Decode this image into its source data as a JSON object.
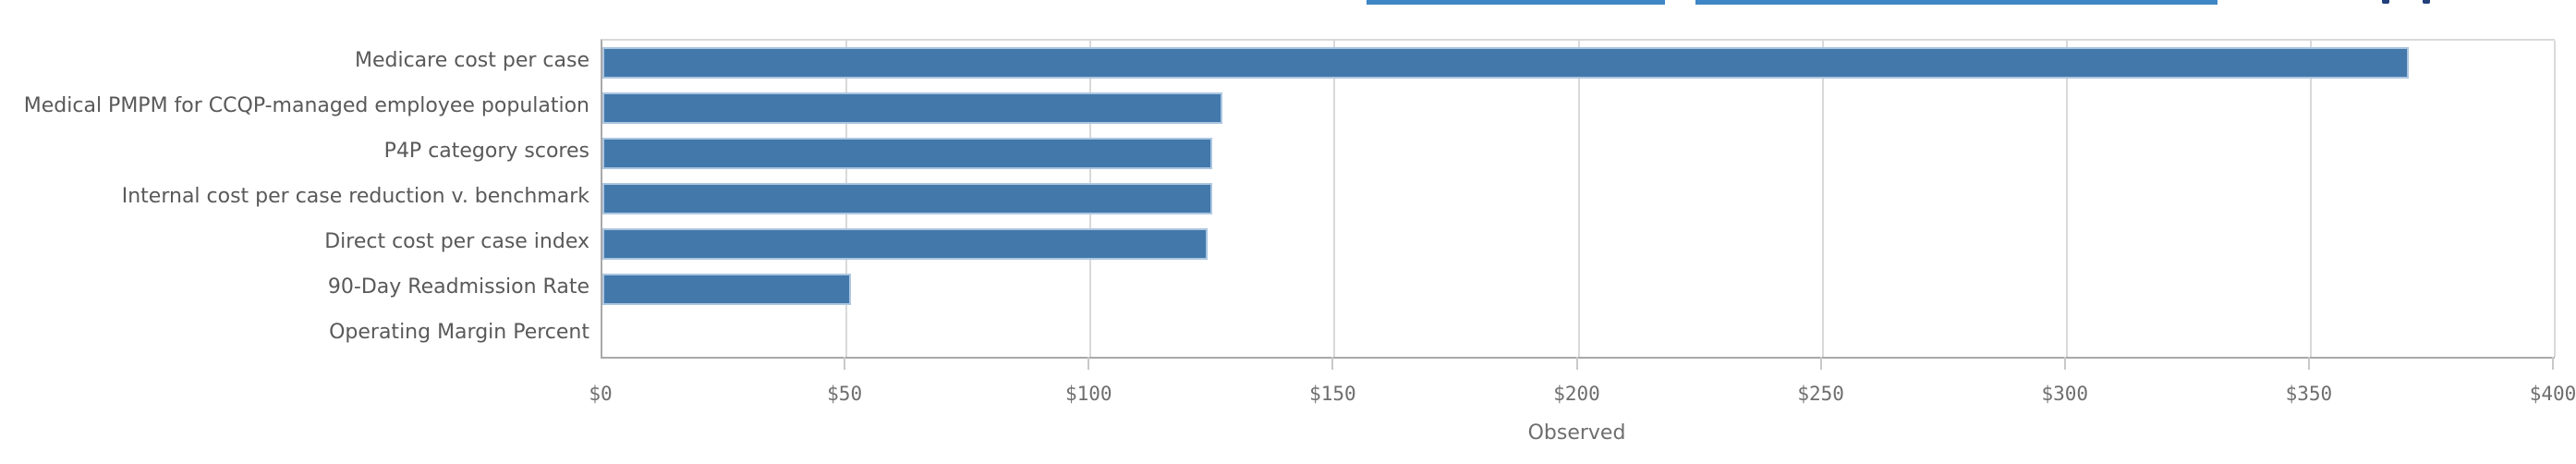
{
  "top_bar": {
    "clipped_button_underline_color": "#3e86c6",
    "clipped_glyph_fragment_color": "#24407c"
  },
  "chart_data": {
    "type": "bar",
    "orientation": "horizontal",
    "title": "",
    "xlabel": "Observed",
    "ylabel": "",
    "categories": [
      "Medicare cost per case",
      "Medical PMPM for CCQP-managed employee population",
      "P4P category scores",
      "Internal cost per case reduction v. benchmark",
      "Direct cost per case index",
      "90-Day Readmission Rate",
      "Operating Margin Percent"
    ],
    "values": [
      370,
      127,
      125,
      125,
      124,
      51,
      0
    ],
    "value_format": "$",
    "xlim": [
      0,
      400
    ],
    "xtick_step": 50,
    "xtick_labels": [
      "$0",
      "$50",
      "$100",
      "$150",
      "$200",
      "$250",
      "$300",
      "$350",
      "$400"
    ],
    "grid": true,
    "legend": "none",
    "colors": {
      "bar_fill": "#4378ab",
      "bar_border": "#abc6e0",
      "gridline": "#d9d9d9",
      "axis_line": "#a9a9a9",
      "category_label": "#595959",
      "tick_label": "#6e6e6e"
    }
  }
}
